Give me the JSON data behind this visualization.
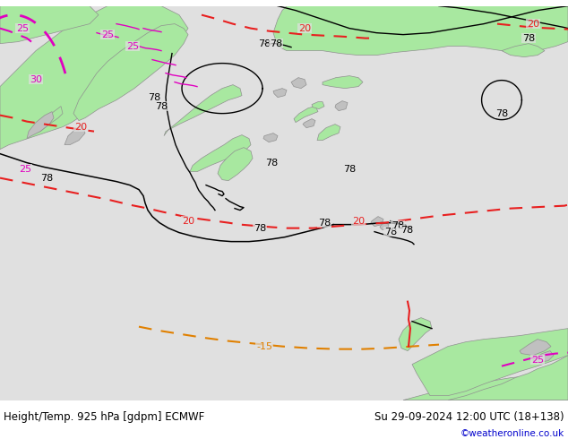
{
  "title_left": "Height/Temp. 925 hPa [gdpm] ECMWF",
  "title_right": "Su 29-09-2024 12:00 UTC (18+138)",
  "copyright": "©weatheronline.co.uk",
  "bg_color": "#e0e0e0",
  "green_color": "#a8e8a0",
  "gray_color": "#c0c0c0",
  "black_line_color": "#000000",
  "red_line_color": "#e82020",
  "magenta_line_color": "#e000c0",
  "orange_line_color": "#e08000",
  "copyright_color": "#0000cc",
  "fig_width": 6.34,
  "fig_height": 4.9,
  "dpi": 100
}
